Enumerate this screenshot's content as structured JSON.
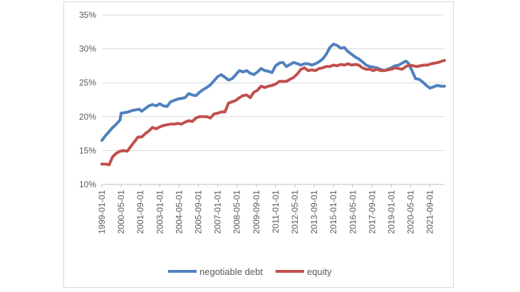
{
  "chart_data": {
    "type": "line",
    "title": "",
    "xlabel": "",
    "ylabel": "",
    "ylim": [
      0.1,
      0.35
    ],
    "yticks": [
      "10%",
      "15%",
      "20%",
      "25%",
      "30%",
      "35%"
    ],
    "xticks": [
      "1999-01-01",
      "2000-05-01",
      "2001-09-01",
      "2003-01-01",
      "2004-05-01",
      "2005-09-01",
      "2007-01-01",
      "2008-05-01",
      "2009-09-01",
      "2011-01-01",
      "2012-05-01",
      "2013-09-01",
      "2015-01-01",
      "2016-05-01",
      "2017-09-01",
      "2019-01-01",
      "2020-05-01",
      "2021-09-01"
    ],
    "x_start": "1999-01",
    "x_end": "2022-09",
    "grid": true,
    "legend_position": "bottom",
    "series": [
      {
        "name": "negotiable debt",
        "color": "#4f81bd",
        "points": [
          [
            "1999-01",
            0.165
          ],
          [
            "1999-04",
            0.172
          ],
          [
            "1999-07",
            0.178
          ],
          [
            "1999-10",
            0.184
          ],
          [
            "2000-01",
            0.189
          ],
          [
            "2000-04",
            0.195
          ],
          [
            "2000-05",
            0.205
          ],
          [
            "2000-08",
            0.206
          ],
          [
            "2000-11",
            0.207
          ],
          [
            "2001-02",
            0.209
          ],
          [
            "2001-05",
            0.21
          ],
          [
            "2001-08",
            0.211
          ],
          [
            "2001-10",
            0.208
          ],
          [
            "2002-01",
            0.212
          ],
          [
            "2002-04",
            0.216
          ],
          [
            "2002-07",
            0.218
          ],
          [
            "2002-10",
            0.216
          ],
          [
            "2003-01",
            0.219
          ],
          [
            "2003-04",
            0.216
          ],
          [
            "2003-07",
            0.215
          ],
          [
            "2003-10",
            0.222
          ],
          [
            "2004-01",
            0.224
          ],
          [
            "2004-04",
            0.226
          ],
          [
            "2004-07",
            0.227
          ],
          [
            "2004-10",
            0.228
          ],
          [
            "2005-01",
            0.234
          ],
          [
            "2005-04",
            0.232
          ],
          [
            "2005-07",
            0.231
          ],
          [
            "2005-10",
            0.236
          ],
          [
            "2006-01",
            0.24
          ],
          [
            "2006-04",
            0.243
          ],
          [
            "2006-07",
            0.247
          ],
          [
            "2006-10",
            0.253
          ],
          [
            "2007-01",
            0.259
          ],
          [
            "2007-04",
            0.262
          ],
          [
            "2007-07",
            0.258
          ],
          [
            "2007-10",
            0.254
          ],
          [
            "2008-01",
            0.256
          ],
          [
            "2008-04",
            0.262
          ],
          [
            "2008-07",
            0.268
          ],
          [
            "2008-10",
            0.266
          ],
          [
            "2009-01",
            0.268
          ],
          [
            "2009-04",
            0.264
          ],
          [
            "2009-07",
            0.262
          ],
          [
            "2009-10",
            0.266
          ],
          [
            "2010-01",
            0.271
          ],
          [
            "2010-04",
            0.268
          ],
          [
            "2010-07",
            0.267
          ],
          [
            "2010-10",
            0.265
          ],
          [
            "2011-01",
            0.275
          ],
          [
            "2011-04",
            0.279
          ],
          [
            "2011-07",
            0.28
          ],
          [
            "2011-10",
            0.274
          ],
          [
            "2012-01",
            0.277
          ],
          [
            "2012-04",
            0.28
          ],
          [
            "2012-07",
            0.278
          ],
          [
            "2012-10",
            0.276
          ],
          [
            "2013-01",
            0.278
          ],
          [
            "2013-04",
            0.278
          ],
          [
            "2013-07",
            0.276
          ],
          [
            "2013-10",
            0.278
          ],
          [
            "2014-01",
            0.281
          ],
          [
            "2014-04",
            0.285
          ],
          [
            "2014-07",
            0.292
          ],
          [
            "2014-10",
            0.302
          ],
          [
            "2015-01",
            0.307
          ],
          [
            "2015-04",
            0.305
          ],
          [
            "2015-07",
            0.301
          ],
          [
            "2015-10",
            0.302
          ],
          [
            "2016-01",
            0.296
          ],
          [
            "2016-04",
            0.292
          ],
          [
            "2016-07",
            0.288
          ],
          [
            "2016-10",
            0.285
          ],
          [
            "2017-01",
            0.281
          ],
          [
            "2017-04",
            0.276
          ],
          [
            "2017-07",
            0.274
          ],
          [
            "2017-10",
            0.273
          ],
          [
            "2018-01",
            0.272
          ],
          [
            "2018-04",
            0.27
          ],
          [
            "2018-07",
            0.268
          ],
          [
            "2018-10",
            0.27
          ],
          [
            "2019-01",
            0.272
          ],
          [
            "2019-04",
            0.275
          ],
          [
            "2019-07",
            0.276
          ],
          [
            "2019-10",
            0.279
          ],
          [
            "2020-01",
            0.282
          ],
          [
            "2020-03",
            0.279
          ],
          [
            "2020-06",
            0.268
          ],
          [
            "2020-09",
            0.256
          ],
          [
            "2020-12",
            0.255
          ],
          [
            "2021-03",
            0.251
          ],
          [
            "2021-06",
            0.246
          ],
          [
            "2021-09",
            0.242
          ],
          [
            "2021-12",
            0.244
          ],
          [
            "2022-03",
            0.246
          ],
          [
            "2022-06",
            0.245
          ],
          [
            "2022-09",
            0.245
          ]
        ]
      },
      {
        "name": "equity",
        "color": "#c0504d",
        "points": [
          [
            "1999-01",
            0.13
          ],
          [
            "1999-04",
            0.13
          ],
          [
            "1999-07",
            0.129
          ],
          [
            "1999-10",
            0.141
          ],
          [
            "2000-01",
            0.146
          ],
          [
            "2000-04",
            0.149
          ],
          [
            "2000-07",
            0.15
          ],
          [
            "2000-10",
            0.149
          ],
          [
            "2001-01",
            0.156
          ],
          [
            "2001-04",
            0.163
          ],
          [
            "2001-07",
            0.17
          ],
          [
            "2001-10",
            0.17
          ],
          [
            "2002-01",
            0.175
          ],
          [
            "2002-04",
            0.179
          ],
          [
            "2002-07",
            0.184
          ],
          [
            "2002-10",
            0.182
          ],
          [
            "2003-01",
            0.185
          ],
          [
            "2003-04",
            0.187
          ],
          [
            "2003-07",
            0.188
          ],
          [
            "2003-10",
            0.189
          ],
          [
            "2004-01",
            0.189
          ],
          [
            "2004-04",
            0.19
          ],
          [
            "2004-07",
            0.189
          ],
          [
            "2004-10",
            0.192
          ],
          [
            "2005-01",
            0.194
          ],
          [
            "2005-04",
            0.193
          ],
          [
            "2005-07",
            0.198
          ],
          [
            "2005-10",
            0.2
          ],
          [
            "2006-01",
            0.2
          ],
          [
            "2006-04",
            0.2
          ],
          [
            "2006-07",
            0.198
          ],
          [
            "2006-10",
            0.204
          ],
          [
            "2007-01",
            0.205
          ],
          [
            "2007-04",
            0.207
          ],
          [
            "2007-07",
            0.207
          ],
          [
            "2007-10",
            0.22
          ],
          [
            "2008-01",
            0.222
          ],
          [
            "2008-04",
            0.224
          ],
          [
            "2008-07",
            0.228
          ],
          [
            "2008-10",
            0.231
          ],
          [
            "2009-01",
            0.232
          ],
          [
            "2009-04",
            0.228
          ],
          [
            "2009-07",
            0.236
          ],
          [
            "2009-10",
            0.239
          ],
          [
            "2010-01",
            0.245
          ],
          [
            "2010-04",
            0.243
          ],
          [
            "2010-07",
            0.245
          ],
          [
            "2010-10",
            0.246
          ],
          [
            "2011-01",
            0.248
          ],
          [
            "2011-04",
            0.252
          ],
          [
            "2011-07",
            0.252
          ],
          [
            "2011-10",
            0.252
          ],
          [
            "2012-01",
            0.255
          ],
          [
            "2012-04",
            0.258
          ],
          [
            "2012-07",
            0.263
          ],
          [
            "2012-10",
            0.27
          ],
          [
            "2013-01",
            0.272
          ],
          [
            "2013-04",
            0.268
          ],
          [
            "2013-07",
            0.269
          ],
          [
            "2013-10",
            0.268
          ],
          [
            "2014-01",
            0.271
          ],
          [
            "2014-04",
            0.272
          ],
          [
            "2014-07",
            0.274
          ],
          [
            "2014-10",
            0.274
          ],
          [
            "2015-01",
            0.276
          ],
          [
            "2015-04",
            0.275
          ],
          [
            "2015-07",
            0.277
          ],
          [
            "2015-10",
            0.276
          ],
          [
            "2016-01",
            0.278
          ],
          [
            "2016-04",
            0.276
          ],
          [
            "2016-07",
            0.277
          ],
          [
            "2016-10",
            0.276
          ],
          [
            "2017-01",
            0.272
          ],
          [
            "2017-04",
            0.27
          ],
          [
            "2017-07",
            0.27
          ],
          [
            "2017-10",
            0.268
          ],
          [
            "2018-01",
            0.27
          ],
          [
            "2018-04",
            0.268
          ],
          [
            "2018-07",
            0.268
          ],
          [
            "2018-10",
            0.269
          ],
          [
            "2019-01",
            0.27
          ],
          [
            "2019-04",
            0.272
          ],
          [
            "2019-07",
            0.271
          ],
          [
            "2019-10",
            0.27
          ],
          [
            "2020-01",
            0.274
          ],
          [
            "2020-04",
            0.276
          ],
          [
            "2020-07",
            0.275
          ],
          [
            "2020-10",
            0.274
          ],
          [
            "2021-01",
            0.275
          ],
          [
            "2021-04",
            0.276
          ],
          [
            "2021-07",
            0.276
          ],
          [
            "2021-10",
            0.278
          ],
          [
            "2022-01",
            0.279
          ],
          [
            "2022-04",
            0.28
          ],
          [
            "2022-07",
            0.282
          ],
          [
            "2022-09",
            0.283
          ]
        ]
      }
    ]
  }
}
